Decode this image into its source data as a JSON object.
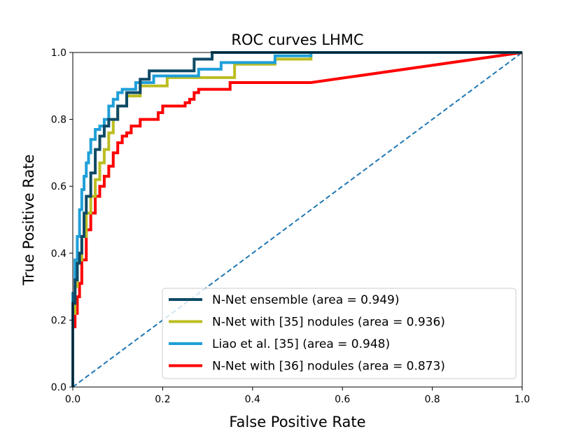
{
  "chart_data": {
    "type": "line",
    "title": "ROC curves LHMC",
    "xlabel": "False Positive Rate",
    "ylabel": "True Positive Rate",
    "xlim": [
      0,
      1
    ],
    "ylim": [
      0,
      1
    ],
    "xticks": [
      "0.0",
      "0.2",
      "0.4",
      "0.6",
      "0.8",
      "1.0"
    ],
    "yticks": [
      "0.0",
      "0.2",
      "0.4",
      "0.6",
      "0.8",
      "1.0"
    ],
    "grid": false,
    "legend_position": "lower-right",
    "series": [
      {
        "name": "N-Net ensemble (area = 0.949)",
        "color": "#0e4a66",
        "style": "solid",
        "x": [
          0.0,
          0.0,
          0.005,
          0.005,
          0.01,
          0.01,
          0.015,
          0.015,
          0.02,
          0.02,
          0.025,
          0.025,
          0.03,
          0.03,
          0.04,
          0.04,
          0.05,
          0.05,
          0.06,
          0.06,
          0.07,
          0.07,
          0.08,
          0.08,
          0.1,
          0.1,
          0.12,
          0.12,
          0.15,
          0.15,
          0.17,
          0.17,
          0.27,
          0.27,
          0.31,
          0.31,
          1.0
        ],
        "y": [
          0.0,
          0.25,
          0.25,
          0.32,
          0.32,
          0.37,
          0.37,
          0.4,
          0.4,
          0.45,
          0.45,
          0.52,
          0.52,
          0.57,
          0.57,
          0.64,
          0.64,
          0.71,
          0.71,
          0.75,
          0.75,
          0.78,
          0.78,
          0.8,
          0.8,
          0.84,
          0.84,
          0.88,
          0.88,
          0.92,
          0.92,
          0.945,
          0.945,
          0.98,
          0.98,
          1.0,
          1.0
        ]
      },
      {
        "name": "N-Net with [35] nodules (area = 0.936)",
        "color": "#bcbd22",
        "style": "solid",
        "x": [
          0.0,
          0.0,
          0.005,
          0.005,
          0.01,
          0.01,
          0.02,
          0.02,
          0.03,
          0.03,
          0.04,
          0.04,
          0.05,
          0.05,
          0.06,
          0.06,
          0.07,
          0.07,
          0.08,
          0.08,
          0.09,
          0.09,
          0.1,
          0.1,
          0.12,
          0.12,
          0.15,
          0.15,
          0.21,
          0.21,
          0.36,
          0.36,
          0.45,
          0.45,
          0.53,
          0.53,
          1.0
        ],
        "y": [
          0.0,
          0.22,
          0.22,
          0.3,
          0.3,
          0.38,
          0.38,
          0.45,
          0.45,
          0.52,
          0.52,
          0.57,
          0.57,
          0.62,
          0.62,
          0.67,
          0.67,
          0.71,
          0.71,
          0.76,
          0.76,
          0.8,
          0.8,
          0.84,
          0.84,
          0.87,
          0.87,
          0.9,
          0.9,
          0.925,
          0.925,
          0.965,
          0.965,
          0.98,
          0.98,
          1.0,
          1.0
        ]
      },
      {
        "name": "Liao et al. [35] (area = 0.948)",
        "color": "#1f9fd8",
        "style": "solid",
        "x": [
          0.0,
          0.0,
          0.005,
          0.005,
          0.01,
          0.01,
          0.015,
          0.015,
          0.02,
          0.02,
          0.025,
          0.025,
          0.03,
          0.03,
          0.035,
          0.035,
          0.04,
          0.04,
          0.05,
          0.05,
          0.06,
          0.06,
          0.07,
          0.07,
          0.08,
          0.08,
          0.09,
          0.09,
          0.1,
          0.1,
          0.11,
          0.11,
          0.14,
          0.14,
          0.18,
          0.18,
          0.28,
          0.28,
          0.33,
          0.33,
          0.45,
          0.45,
          0.53,
          0.53,
          1.0
        ],
        "y": [
          0.0,
          0.28,
          0.28,
          0.38,
          0.38,
          0.45,
          0.45,
          0.53,
          0.53,
          0.59,
          0.59,
          0.63,
          0.63,
          0.67,
          0.67,
          0.7,
          0.7,
          0.74,
          0.74,
          0.77,
          0.77,
          0.78,
          0.78,
          0.8,
          0.8,
          0.84,
          0.84,
          0.86,
          0.86,
          0.88,
          0.88,
          0.89,
          0.89,
          0.91,
          0.91,
          0.93,
          0.93,
          0.95,
          0.95,
          0.97,
          0.97,
          0.99,
          0.99,
          1.0,
          1.0
        ]
      },
      {
        "name": "N-Net with [36] nodules (area = 0.873)",
        "color": "#ff0000",
        "style": "solid",
        "x": [
          0.0,
          0.0,
          0.005,
          0.005,
          0.01,
          0.01,
          0.015,
          0.015,
          0.02,
          0.02,
          0.03,
          0.03,
          0.04,
          0.04,
          0.05,
          0.05,
          0.06,
          0.06,
          0.07,
          0.07,
          0.08,
          0.08,
          0.09,
          0.09,
          0.1,
          0.1,
          0.11,
          0.11,
          0.12,
          0.12,
          0.13,
          0.13,
          0.15,
          0.15,
          0.19,
          0.19,
          0.2,
          0.2,
          0.25,
          0.25,
          0.26,
          0.26,
          0.27,
          0.27,
          0.28,
          0.28,
          0.35,
          0.35,
          0.53,
          1.0
        ],
        "y": [
          0.0,
          0.18,
          0.18,
          0.22,
          0.22,
          0.27,
          0.27,
          0.31,
          0.31,
          0.38,
          0.38,
          0.47,
          0.47,
          0.52,
          0.52,
          0.57,
          0.57,
          0.6,
          0.6,
          0.63,
          0.63,
          0.66,
          0.66,
          0.7,
          0.7,
          0.73,
          0.73,
          0.75,
          0.75,
          0.76,
          0.76,
          0.78,
          0.78,
          0.8,
          0.8,
          0.82,
          0.82,
          0.84,
          0.84,
          0.85,
          0.85,
          0.86,
          0.86,
          0.88,
          0.88,
          0.89,
          0.89,
          0.91,
          0.91,
          1.0
        ]
      },
      {
        "name": "",
        "color": "#1f77b4",
        "style": "dashed",
        "x": [
          0,
          1
        ],
        "y": [
          0,
          1
        ]
      }
    ]
  }
}
